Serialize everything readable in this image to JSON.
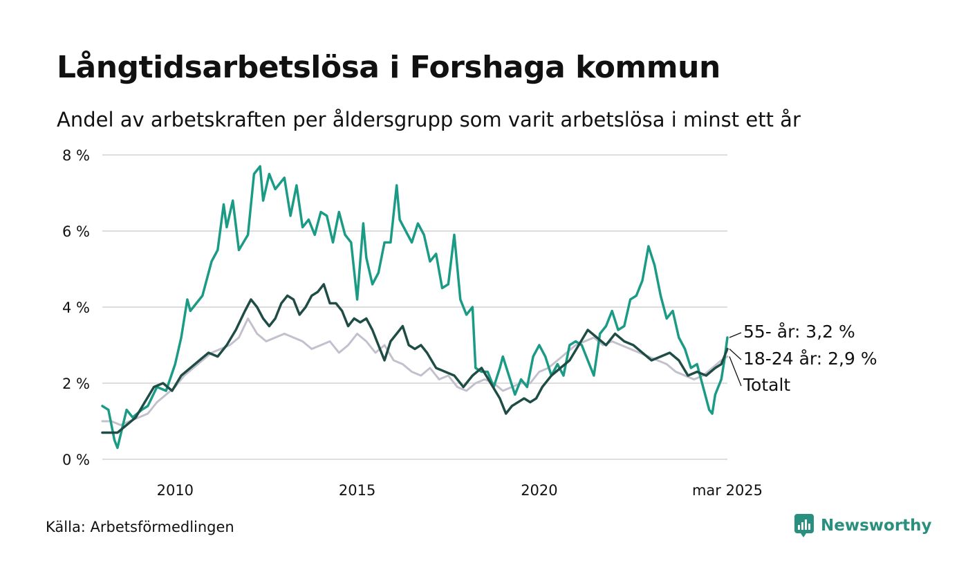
{
  "header": {
    "title": "Långtidsarbetslösa i Forshaga kommun",
    "subtitle": "Andel av arbetskraften per åldersgrupp som varit arbetslösa i minst ett år"
  },
  "footer": {
    "source": "Källa: Arbetsförmedlingen",
    "brand": "Newsworthy"
  },
  "colors": {
    "age_55": "#1b9a86",
    "age_18_24": "#1f4d46",
    "total": "#c2c0cc",
    "grid": "#dddddd",
    "brand": "#2a8f7e"
  },
  "chart_data": {
    "type": "line",
    "x_start": "2008-01",
    "x_end": "2025-03",
    "ylim": [
      0,
      8
    ],
    "y_ticks": [
      0,
      2,
      4,
      6,
      8
    ],
    "y_tick_labels": [
      "0 %",
      "2 %",
      "4 %",
      "6 %",
      "8 %"
    ],
    "x_ticks": [
      2010,
      2015,
      2020
    ],
    "x_tick_labels": [
      "2010",
      "2015",
      "2020"
    ],
    "x_end_label": "mar 2025",
    "grid": true,
    "series": [
      {
        "key": "total",
        "name": "Totalt",
        "end_label": "Totalt",
        "points": [
          [
            "2008-01",
            1.0
          ],
          [
            "2008-04",
            1.0
          ],
          [
            "2008-07",
            0.9
          ],
          [
            "2008-10",
            1.0
          ],
          [
            "2009-01",
            1.1
          ],
          [
            "2009-04",
            1.2
          ],
          [
            "2009-07",
            1.5
          ],
          [
            "2009-10",
            1.7
          ],
          [
            "2010-01",
            1.9
          ],
          [
            "2010-04",
            2.2
          ],
          [
            "2010-07",
            2.4
          ],
          [
            "2010-10",
            2.6
          ],
          [
            "2011-01",
            2.8
          ],
          [
            "2011-04",
            2.9
          ],
          [
            "2011-07",
            3.0
          ],
          [
            "2011-10",
            3.2
          ],
          [
            "2012-01",
            3.7
          ],
          [
            "2012-04",
            3.3
          ],
          [
            "2012-07",
            3.1
          ],
          [
            "2012-10",
            3.2
          ],
          [
            "2013-01",
            3.3
          ],
          [
            "2013-04",
            3.2
          ],
          [
            "2013-07",
            3.1
          ],
          [
            "2013-10",
            2.9
          ],
          [
            "2014-01",
            3.0
          ],
          [
            "2014-04",
            3.1
          ],
          [
            "2014-07",
            2.8
          ],
          [
            "2014-10",
            3.0
          ],
          [
            "2015-01",
            3.3
          ],
          [
            "2015-04",
            3.1
          ],
          [
            "2015-07",
            2.8
          ],
          [
            "2015-10",
            3.0
          ],
          [
            "2016-01",
            2.6
          ],
          [
            "2016-04",
            2.5
          ],
          [
            "2016-07",
            2.3
          ],
          [
            "2016-10",
            2.2
          ],
          [
            "2017-01",
            2.4
          ],
          [
            "2017-04",
            2.1
          ],
          [
            "2017-07",
            2.2
          ],
          [
            "2017-10",
            1.9
          ],
          [
            "2018-01",
            1.8
          ],
          [
            "2018-04",
            2.0
          ],
          [
            "2018-07",
            2.1
          ],
          [
            "2018-10",
            2.0
          ],
          [
            "2019-01",
            1.8
          ],
          [
            "2019-04",
            1.9
          ],
          [
            "2019-07",
            2.0
          ],
          [
            "2019-10",
            2.0
          ],
          [
            "2020-01",
            2.3
          ],
          [
            "2020-04",
            2.4
          ],
          [
            "2020-07",
            2.6
          ],
          [
            "2020-10",
            2.8
          ],
          [
            "2021-01",
            3.0
          ],
          [
            "2021-04",
            3.1
          ],
          [
            "2021-07",
            3.2
          ],
          [
            "2021-10",
            3.0
          ],
          [
            "2022-01",
            3.1
          ],
          [
            "2022-04",
            3.0
          ],
          [
            "2022-07",
            2.9
          ],
          [
            "2022-10",
            2.8
          ],
          [
            "2023-01",
            2.7
          ],
          [
            "2023-04",
            2.6
          ],
          [
            "2023-07",
            2.5
          ],
          [
            "2023-10",
            2.3
          ],
          [
            "2024-01",
            2.2
          ],
          [
            "2024-04",
            2.1
          ],
          [
            "2024-07",
            2.2
          ],
          [
            "2024-10",
            2.4
          ],
          [
            "2025-01",
            2.6
          ],
          [
            "2025-03",
            2.7
          ]
        ]
      },
      {
        "key": "age_55",
        "name": "55- år",
        "end_label": "55- år: 3,2 %",
        "points": [
          [
            "2008-01",
            1.4
          ],
          [
            "2008-03",
            1.3
          ],
          [
            "2008-05",
            0.5
          ],
          [
            "2008-06",
            0.3
          ],
          [
            "2008-09",
            1.3
          ],
          [
            "2008-11",
            1.1
          ],
          [
            "2009-02",
            1.3
          ],
          [
            "2009-04",
            1.4
          ],
          [
            "2009-07",
            1.9
          ],
          [
            "2009-10",
            1.8
          ],
          [
            "2010-01",
            2.5
          ],
          [
            "2010-03",
            3.2
          ],
          [
            "2010-05",
            4.2
          ],
          [
            "2010-06",
            3.9
          ],
          [
            "2010-08",
            4.1
          ],
          [
            "2010-10",
            4.3
          ],
          [
            "2011-01",
            5.2
          ],
          [
            "2011-03",
            5.5
          ],
          [
            "2011-05",
            6.7
          ],
          [
            "2011-06",
            6.1
          ],
          [
            "2011-08",
            6.8
          ],
          [
            "2011-10",
            5.5
          ],
          [
            "2012-01",
            5.9
          ],
          [
            "2012-03",
            7.5
          ],
          [
            "2012-05",
            7.7
          ],
          [
            "2012-06",
            6.8
          ],
          [
            "2012-08",
            7.5
          ],
          [
            "2012-10",
            7.1
          ],
          [
            "2013-01",
            7.4
          ],
          [
            "2013-03",
            6.4
          ],
          [
            "2013-05",
            7.2
          ],
          [
            "2013-07",
            6.1
          ],
          [
            "2013-09",
            6.3
          ],
          [
            "2013-11",
            5.9
          ],
          [
            "2014-01",
            6.5
          ],
          [
            "2014-03",
            6.4
          ],
          [
            "2014-05",
            5.7
          ],
          [
            "2014-07",
            6.5
          ],
          [
            "2014-09",
            5.9
          ],
          [
            "2014-11",
            5.7
          ],
          [
            "2015-01",
            4.2
          ],
          [
            "2015-03",
            6.2
          ],
          [
            "2015-04",
            5.3
          ],
          [
            "2015-06",
            4.6
          ],
          [
            "2015-08",
            4.9
          ],
          [
            "2015-10",
            5.7
          ],
          [
            "2015-12",
            5.7
          ],
          [
            "2016-02",
            7.2
          ],
          [
            "2016-03",
            6.3
          ],
          [
            "2016-05",
            6.0
          ],
          [
            "2016-07",
            5.7
          ],
          [
            "2016-09",
            6.2
          ],
          [
            "2016-11",
            5.9
          ],
          [
            "2017-01",
            5.2
          ],
          [
            "2017-03",
            5.4
          ],
          [
            "2017-05",
            4.5
          ],
          [
            "2017-07",
            4.6
          ],
          [
            "2017-09",
            5.9
          ],
          [
            "2017-11",
            4.2
          ],
          [
            "2018-01",
            3.8
          ],
          [
            "2018-03",
            4.0
          ],
          [
            "2018-04",
            2.4
          ],
          [
            "2018-06",
            2.3
          ],
          [
            "2018-08",
            2.3
          ],
          [
            "2018-10",
            1.9
          ],
          [
            "2018-12",
            2.4
          ],
          [
            "2019-01",
            2.7
          ],
          [
            "2019-03",
            2.2
          ],
          [
            "2019-05",
            1.7
          ],
          [
            "2019-07",
            2.1
          ],
          [
            "2019-09",
            1.9
          ],
          [
            "2019-11",
            2.7
          ],
          [
            "2020-01",
            3.0
          ],
          [
            "2020-03",
            2.7
          ],
          [
            "2020-05",
            2.2
          ],
          [
            "2020-07",
            2.5
          ],
          [
            "2020-09",
            2.2
          ],
          [
            "2020-11",
            3.0
          ],
          [
            "2021-01",
            3.1
          ],
          [
            "2021-03",
            3.0
          ],
          [
            "2021-05",
            2.6
          ],
          [
            "2021-07",
            2.2
          ],
          [
            "2021-09",
            3.3
          ],
          [
            "2021-11",
            3.5
          ],
          [
            "2022-01",
            3.9
          ],
          [
            "2022-03",
            3.4
          ],
          [
            "2022-05",
            3.5
          ],
          [
            "2022-07",
            4.2
          ],
          [
            "2022-09",
            4.3
          ],
          [
            "2022-11",
            4.7
          ],
          [
            "2023-01",
            5.6
          ],
          [
            "2023-03",
            5.1
          ],
          [
            "2023-05",
            4.3
          ],
          [
            "2023-07",
            3.7
          ],
          [
            "2023-09",
            3.9
          ],
          [
            "2023-11",
            3.2
          ],
          [
            "2024-01",
            2.9
          ],
          [
            "2024-03",
            2.4
          ],
          [
            "2024-05",
            2.5
          ],
          [
            "2024-07",
            1.9
          ],
          [
            "2024-09",
            1.3
          ],
          [
            "2024-10",
            1.2
          ],
          [
            "2024-11",
            1.7
          ],
          [
            "2025-01",
            2.1
          ],
          [
            "2025-02",
            2.6
          ],
          [
            "2025-03",
            3.2
          ]
        ]
      },
      {
        "key": "age_18_24",
        "name": "18-24 år",
        "end_label": "18-24 år: 2,9 %",
        "points": [
          [
            "2008-01",
            0.7
          ],
          [
            "2008-03",
            0.7
          ],
          [
            "2008-06",
            0.7
          ],
          [
            "2008-09",
            0.9
          ],
          [
            "2008-12",
            1.1
          ],
          [
            "2009-03",
            1.5
          ],
          [
            "2009-06",
            1.9
          ],
          [
            "2009-09",
            2.0
          ],
          [
            "2009-12",
            1.8
          ],
          [
            "2010-03",
            2.2
          ],
          [
            "2010-06",
            2.4
          ],
          [
            "2010-09",
            2.6
          ],
          [
            "2010-12",
            2.8
          ],
          [
            "2011-03",
            2.7
          ],
          [
            "2011-06",
            3.0
          ],
          [
            "2011-09",
            3.4
          ],
          [
            "2011-12",
            3.9
          ],
          [
            "2012-02",
            4.2
          ],
          [
            "2012-04",
            4.0
          ],
          [
            "2012-06",
            3.7
          ],
          [
            "2012-08",
            3.5
          ],
          [
            "2012-10",
            3.7
          ],
          [
            "2012-12",
            4.1
          ],
          [
            "2013-02",
            4.3
          ],
          [
            "2013-04",
            4.2
          ],
          [
            "2013-06",
            3.8
          ],
          [
            "2013-08",
            4.0
          ],
          [
            "2013-10",
            4.3
          ],
          [
            "2013-12",
            4.4
          ],
          [
            "2014-02",
            4.6
          ],
          [
            "2014-04",
            4.1
          ],
          [
            "2014-06",
            4.1
          ],
          [
            "2014-08",
            3.9
          ],
          [
            "2014-10",
            3.5
          ],
          [
            "2014-12",
            3.7
          ],
          [
            "2015-02",
            3.6
          ],
          [
            "2015-04",
            3.7
          ],
          [
            "2015-06",
            3.4
          ],
          [
            "2015-08",
            3.0
          ],
          [
            "2015-10",
            2.6
          ],
          [
            "2015-12",
            3.1
          ],
          [
            "2016-02",
            3.3
          ],
          [
            "2016-04",
            3.5
          ],
          [
            "2016-06",
            3.0
          ],
          [
            "2016-08",
            2.9
          ],
          [
            "2016-10",
            3.0
          ],
          [
            "2016-12",
            2.8
          ],
          [
            "2017-03",
            2.4
          ],
          [
            "2017-06",
            2.3
          ],
          [
            "2017-09",
            2.2
          ],
          [
            "2017-12",
            1.9
          ],
          [
            "2018-03",
            2.2
          ],
          [
            "2018-06",
            2.4
          ],
          [
            "2018-09",
            2.0
          ],
          [
            "2018-12",
            1.6
          ],
          [
            "2019-02",
            1.2
          ],
          [
            "2019-04",
            1.4
          ],
          [
            "2019-06",
            1.5
          ],
          [
            "2019-08",
            1.6
          ],
          [
            "2019-10",
            1.5
          ],
          [
            "2019-12",
            1.6
          ],
          [
            "2020-02",
            1.9
          ],
          [
            "2020-05",
            2.2
          ],
          [
            "2020-08",
            2.4
          ],
          [
            "2020-11",
            2.6
          ],
          [
            "2021-02",
            3.0
          ],
          [
            "2021-05",
            3.4
          ],
          [
            "2021-08",
            3.2
          ],
          [
            "2021-11",
            3.0
          ],
          [
            "2022-02",
            3.3
          ],
          [
            "2022-05",
            3.1
          ],
          [
            "2022-08",
            3.0
          ],
          [
            "2022-11",
            2.8
          ],
          [
            "2023-02",
            2.6
          ],
          [
            "2023-05",
            2.7
          ],
          [
            "2023-08",
            2.8
          ],
          [
            "2023-11",
            2.6
          ],
          [
            "2024-02",
            2.2
          ],
          [
            "2024-05",
            2.3
          ],
          [
            "2024-08",
            2.2
          ],
          [
            "2024-11",
            2.4
          ],
          [
            "2025-01",
            2.5
          ],
          [
            "2025-03",
            2.9
          ]
        ]
      }
    ]
  }
}
